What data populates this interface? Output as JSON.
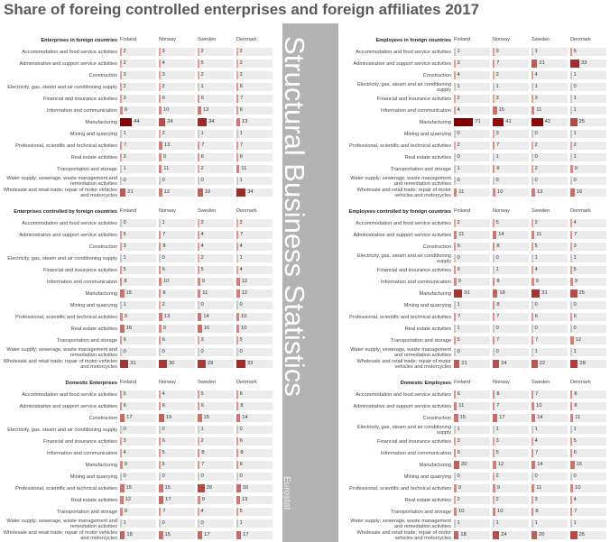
{
  "title": "Share of foreing controlled enterprises and foreign affiliates 2017",
  "side_title": "Structural Business Statistics",
  "source": "Eurostat",
  "countries": [
    "Finland",
    "Norway",
    "Sweden",
    "Denmark"
  ],
  "categories": [
    "Accommodation and food service activities",
    "Administrative and support service activities",
    "Construction",
    "Electricity, gas, steam and air conditioning supply",
    "Financial and insurance activities",
    "Information and communication",
    "Manufacturing",
    "Mining and quarrying",
    "Professional, scientific and technical activities",
    "Real estate activities",
    "Transportation and storage",
    "Water supply; sewerage, waste management and remediation activities",
    "Wholesale and retail trade; repair of motor vehicles and motorcycles"
  ],
  "panels": [
    {
      "title": "Enterprises in foreign countries",
      "values": [
        [
          2,
          3,
          2,
          2
        ],
        [
          2,
          4,
          5,
          2
        ],
        [
          3,
          3,
          2,
          2
        ],
        [
          2,
          2,
          1,
          6
        ],
        [
          3,
          6,
          6,
          7
        ],
        [
          9,
          10,
          13,
          6
        ],
        [
          44,
          24,
          34,
          13
        ],
        [
          1,
          2,
          1,
          1
        ],
        [
          7,
          13,
          7,
          7
        ],
        [
          3,
          9,
          6,
          6
        ],
        [
          1,
          11,
          2,
          11
        ],
        [
          0,
          0,
          0,
          1
        ],
        [
          21,
          12,
          19,
          34
        ]
      ]
    },
    {
      "title": "Enterprises controlled by foreign countries",
      "values": [
        [
          0,
          1,
          2,
          2
        ],
        [
          5,
          7,
          4,
          7
        ],
        [
          3,
          8,
          4,
          4
        ],
        [
          1,
          0,
          2,
          1
        ],
        [
          5,
          6,
          5,
          4
        ],
        [
          8,
          10,
          9,
          12
        ],
        [
          15,
          8,
          11,
          12
        ],
        [
          1,
          2,
          0,
          0
        ],
        [
          9,
          13,
          14,
          10
        ],
        [
          16,
          9,
          16,
          10
        ],
        [
          6,
          6,
          3,
          5
        ],
        [
          0,
          0,
          0,
          0
        ],
        [
          31,
          30,
          29,
          33
        ]
      ]
    },
    {
      "title": "Domestic Enterprises",
      "values": [
        [
          5,
          4,
          5,
          6
        ],
        [
          6,
          6,
          6,
          8
        ],
        [
          17,
          19,
          15,
          14
        ],
        [
          0,
          0,
          1,
          0
        ],
        [
          3,
          6,
          2,
          6
        ],
        [
          4,
          5,
          8,
          8
        ],
        [
          9,
          5,
          7,
          6
        ],
        [
          0,
          0,
          0,
          0
        ],
        [
          15,
          15,
          26,
          16
        ],
        [
          12,
          17,
          9,
          13
        ],
        [
          9,
          7,
          4,
          5
        ],
        [
          1,
          0,
          0,
          1
        ],
        [
          18,
          15,
          17,
          17
        ]
      ]
    },
    {
      "title": "Employees in foreign countries",
      "values": [
        [
          1,
          3,
          1,
          5
        ],
        [
          3,
          7,
          21,
          33
        ],
        [
          4,
          2,
          4,
          1
        ],
        [
          1,
          1,
          1,
          0
        ],
        [
          2,
          3,
          3,
          1
        ],
        [
          4,
          15,
          11,
          1
        ],
        [
          71,
          41,
          42,
          25
        ],
        [
          0,
          3,
          0,
          1
        ],
        [
          2,
          7,
          2,
          2
        ],
        [
          0,
          1,
          0,
          1
        ],
        [
          1,
          8,
          2,
          9
        ],
        [
          0,
          0,
          0,
          0
        ],
        [
          11,
          10,
          13,
          16
        ]
      ]
    },
    {
      "title": "Employees controlled by foreign countries",
      "values": [
        [
          2,
          5,
          2,
          4
        ],
        [
          11,
          14,
          11,
          7
        ],
        [
          6,
          8,
          5,
          3
        ],
        [
          0,
          0,
          1,
          1
        ],
        [
          6,
          1,
          4,
          5
        ],
        [
          9,
          8,
          9,
          9
        ],
        [
          31,
          18,
          31,
          25
        ],
        [
          1,
          8,
          0,
          0
        ],
        [
          7,
          7,
          6,
          6
        ],
        [
          1,
          0,
          0,
          0
        ],
        [
          5,
          7,
          7,
          12
        ],
        [
          0,
          0,
          1,
          1
        ],
        [
          21,
          24,
          22,
          28
        ]
      ]
    },
    {
      "title": "Domestic Employees",
      "values": [
        [
          6,
          8,
          7,
          8
        ],
        [
          11,
          7,
          10,
          8
        ],
        [
          15,
          17,
          14,
          11
        ],
        [
          1,
          1,
          1,
          1
        ],
        [
          3,
          3,
          4,
          5
        ],
        [
          6,
          5,
          7,
          6
        ],
        [
          20,
          12,
          14,
          15
        ],
        [
          0,
          2,
          0,
          0
        ],
        [
          9,
          9,
          11,
          10
        ],
        [
          2,
          2,
          3,
          4
        ],
        [
          10,
          10,
          8,
          7
        ],
        [
          1,
          1,
          1,
          1
        ],
        [
          18,
          24,
          20,
          25
        ]
      ]
    }
  ]
}
